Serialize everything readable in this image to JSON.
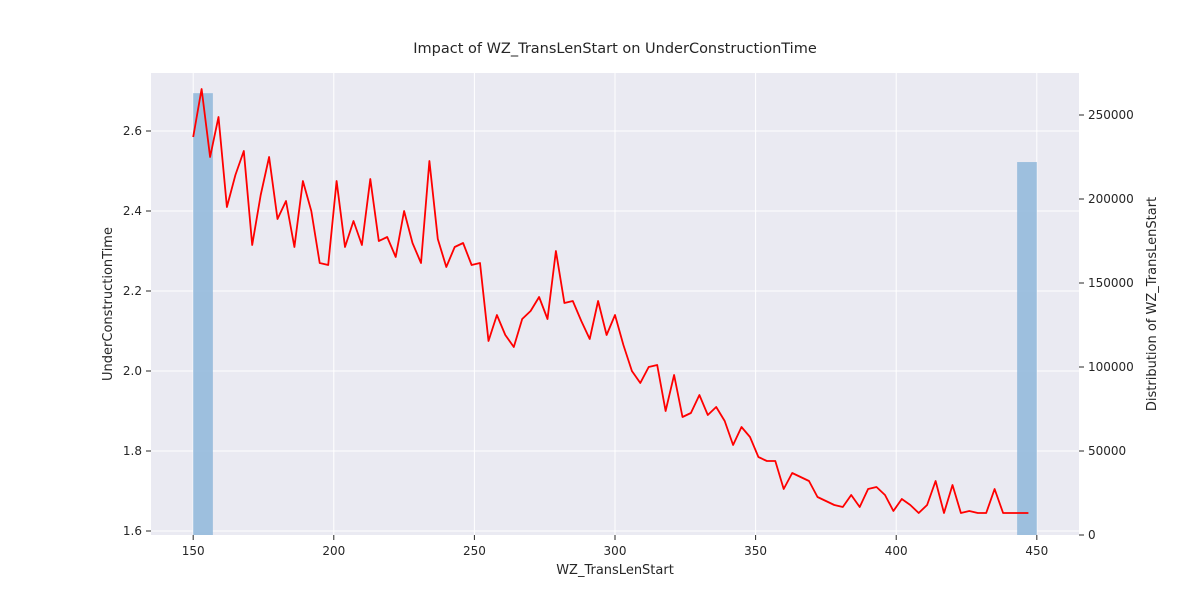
{
  "chart_data": {
    "type": "line",
    "title": "Impact of WZ_TransLenStart on UnderConstructionTime",
    "xlabel": "WZ_TransLenStart",
    "ylabel": "UnderConstructionTime",
    "y2label": "Distribution of WZ_TransLenStart",
    "xlim": [
      135,
      465
    ],
    "ylim": [
      1.59,
      2.745
    ],
    "y2lim": [
      0,
      275000
    ],
    "x_ticks": [
      150,
      200,
      250,
      300,
      350,
      400,
      450
    ],
    "y_ticks": [
      1.6,
      1.8,
      2.0,
      2.2,
      2.4,
      2.6
    ],
    "y_tick_labels": [
      "1.6",
      "1.8",
      "2.0",
      "2.2",
      "2.4",
      "2.6"
    ],
    "y2_ticks": [
      0,
      50000,
      100000,
      150000,
      200000,
      250000
    ],
    "grid": true,
    "background": "#eaeaf2",
    "line_color": "#ff0000",
    "bar_color": "#8fb7db",
    "histogram": [
      {
        "x0": 150,
        "x1": 157,
        "count": 263000
      },
      {
        "x0": 443,
        "x1": 450,
        "count": 222000
      }
    ],
    "series": [
      {
        "color": "#ff0000",
        "x": [
          150,
          153,
          156,
          159,
          162,
          165,
          168,
          171,
          174,
          177,
          180,
          183,
          186,
          189,
          192,
          195,
          198,
          201,
          204,
          207,
          210,
          213,
          216,
          219,
          222,
          225,
          228,
          231,
          234,
          237,
          240,
          243,
          246,
          249,
          252,
          255,
          258,
          261,
          264,
          267,
          270,
          273,
          276,
          279,
          282,
          285,
          288,
          291,
          294,
          297,
          300,
          303,
          306,
          309,
          312,
          315,
          318,
          321,
          324,
          327,
          330,
          333,
          336,
          339,
          342,
          345,
          348,
          351,
          354,
          357,
          360,
          363,
          366,
          369,
          372,
          375,
          378,
          381,
          384,
          387,
          390,
          393,
          396,
          399,
          402,
          405,
          408,
          411,
          414,
          417,
          420,
          423,
          426,
          429,
          432,
          435,
          438,
          441,
          444,
          447
        ],
        "y": [
          2.585,
          2.705,
          2.535,
          2.635,
          2.41,
          2.49,
          2.55,
          2.315,
          2.44,
          2.535,
          2.38,
          2.425,
          2.31,
          2.475,
          2.4,
          2.27,
          2.265,
          2.475,
          2.31,
          2.375,
          2.315,
          2.48,
          2.325,
          2.335,
          2.285,
          2.4,
          2.32,
          2.27,
          2.525,
          2.33,
          2.26,
          2.31,
          2.32,
          2.265,
          2.27,
          2.075,
          2.14,
          2.09,
          2.06,
          2.13,
          2.15,
          2.185,
          2.13,
          2.3,
          2.17,
          2.175,
          2.125,
          2.08,
          2.175,
          2.09,
          2.14,
          2.065,
          2.0,
          1.97,
          2.01,
          2.015,
          1.9,
          1.99,
          1.885,
          1.895,
          1.94,
          1.89,
          1.91,
          1.875,
          1.815,
          1.86,
          1.835,
          1.785,
          1.775,
          1.775,
          1.705,
          1.745,
          1.735,
          1.725,
          1.685,
          1.675,
          1.665,
          1.66,
          1.69,
          1.66,
          1.705,
          1.71,
          1.69,
          1.65,
          1.68,
          1.665,
          1.645,
          1.665,
          1.725,
          1.645,
          1.715,
          1.645,
          1.65,
          1.645,
          1.645,
          1.705,
          1.645,
          1.645,
          1.645,
          1.645
        ]
      }
    ]
  }
}
